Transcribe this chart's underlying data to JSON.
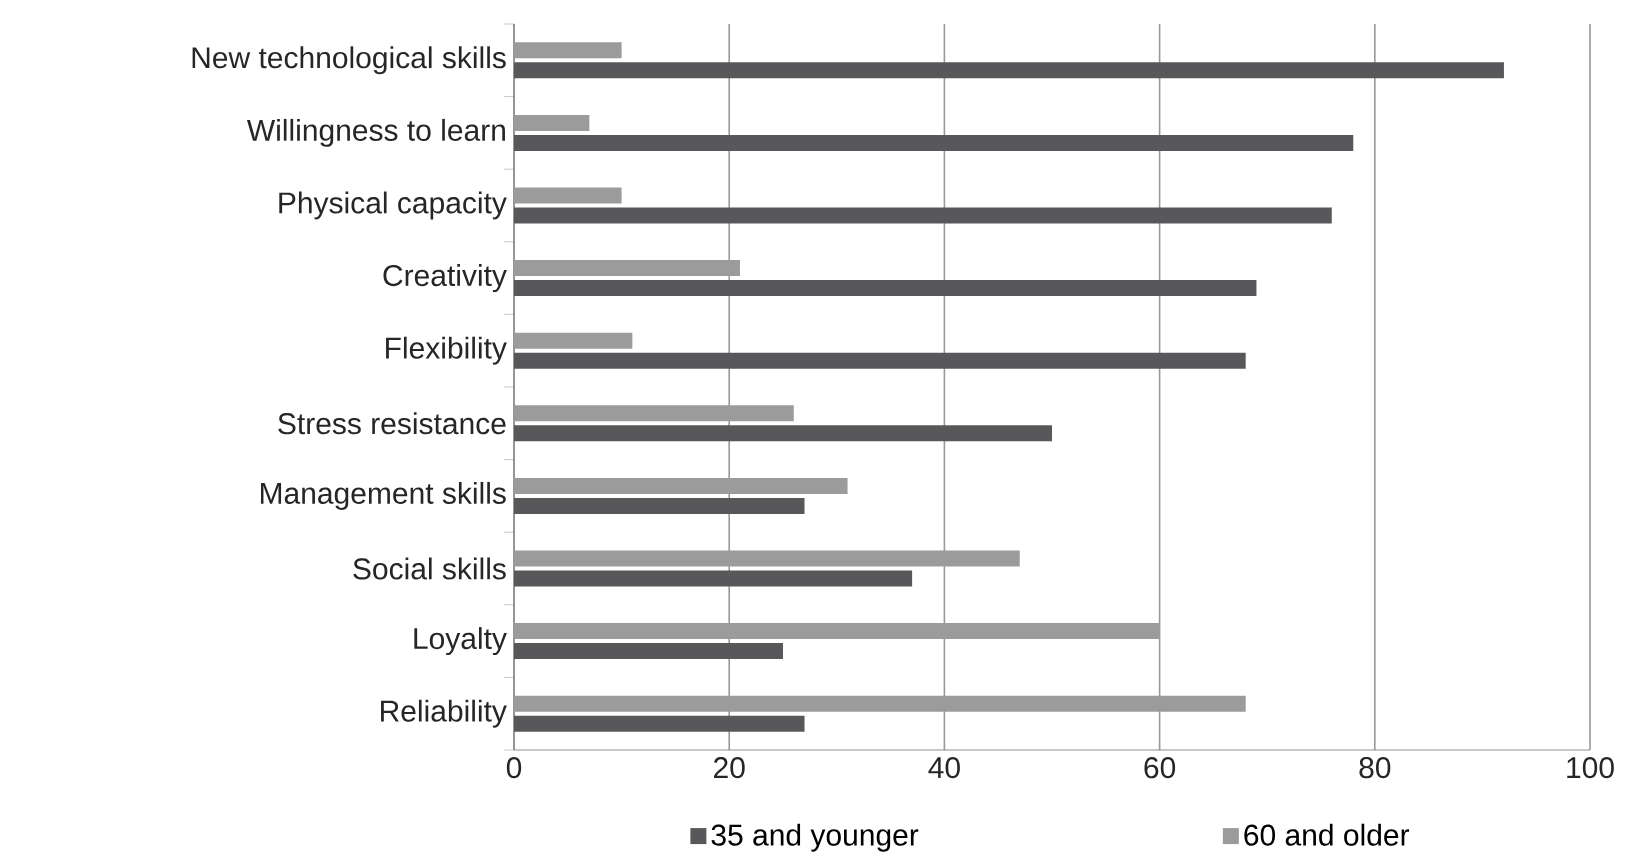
{
  "chart_data": {
    "type": "bar",
    "orientation": "horizontal",
    "categories": [
      "New technological skills",
      "Willingness to learn",
      "Physical capacity",
      "Creativity",
      "Flexibility",
      "Stress resistance",
      "Management skills",
      "Social skills",
      "Loyalty",
      "Reliability"
    ],
    "series": [
      {
        "name": "35 and younger",
        "color": "#58585a",
        "values": [
          92,
          78,
          76,
          69,
          68,
          50,
          27,
          37,
          25,
          27
        ]
      },
      {
        "name": "60 and older",
        "color": "#9b9b9b",
        "values": [
          10,
          7,
          10,
          21,
          11,
          26,
          31,
          47,
          60,
          68
        ]
      }
    ],
    "xlim": [
      0,
      100
    ],
    "xticks": [
      0,
      20,
      40,
      60,
      80,
      100
    ],
    "grid": "x",
    "legend": "bottom"
  }
}
